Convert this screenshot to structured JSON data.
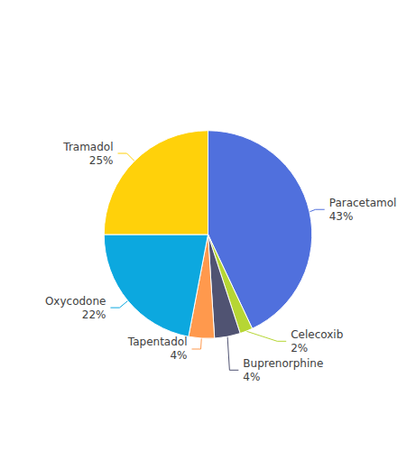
{
  "chart_data": {
    "type": "pie",
    "categories": [
      "Paracetamol",
      "Celecoxib",
      "Buprenorphine",
      "Tapentadol",
      "Oxycodone",
      "Tramadol"
    ],
    "values": [
      43,
      2,
      4,
      4,
      22,
      25
    ],
    "value_labels": [
      "43%",
      "2%",
      "4%",
      "4%",
      "22%",
      "25%"
    ],
    "data_labels": true
  }
}
